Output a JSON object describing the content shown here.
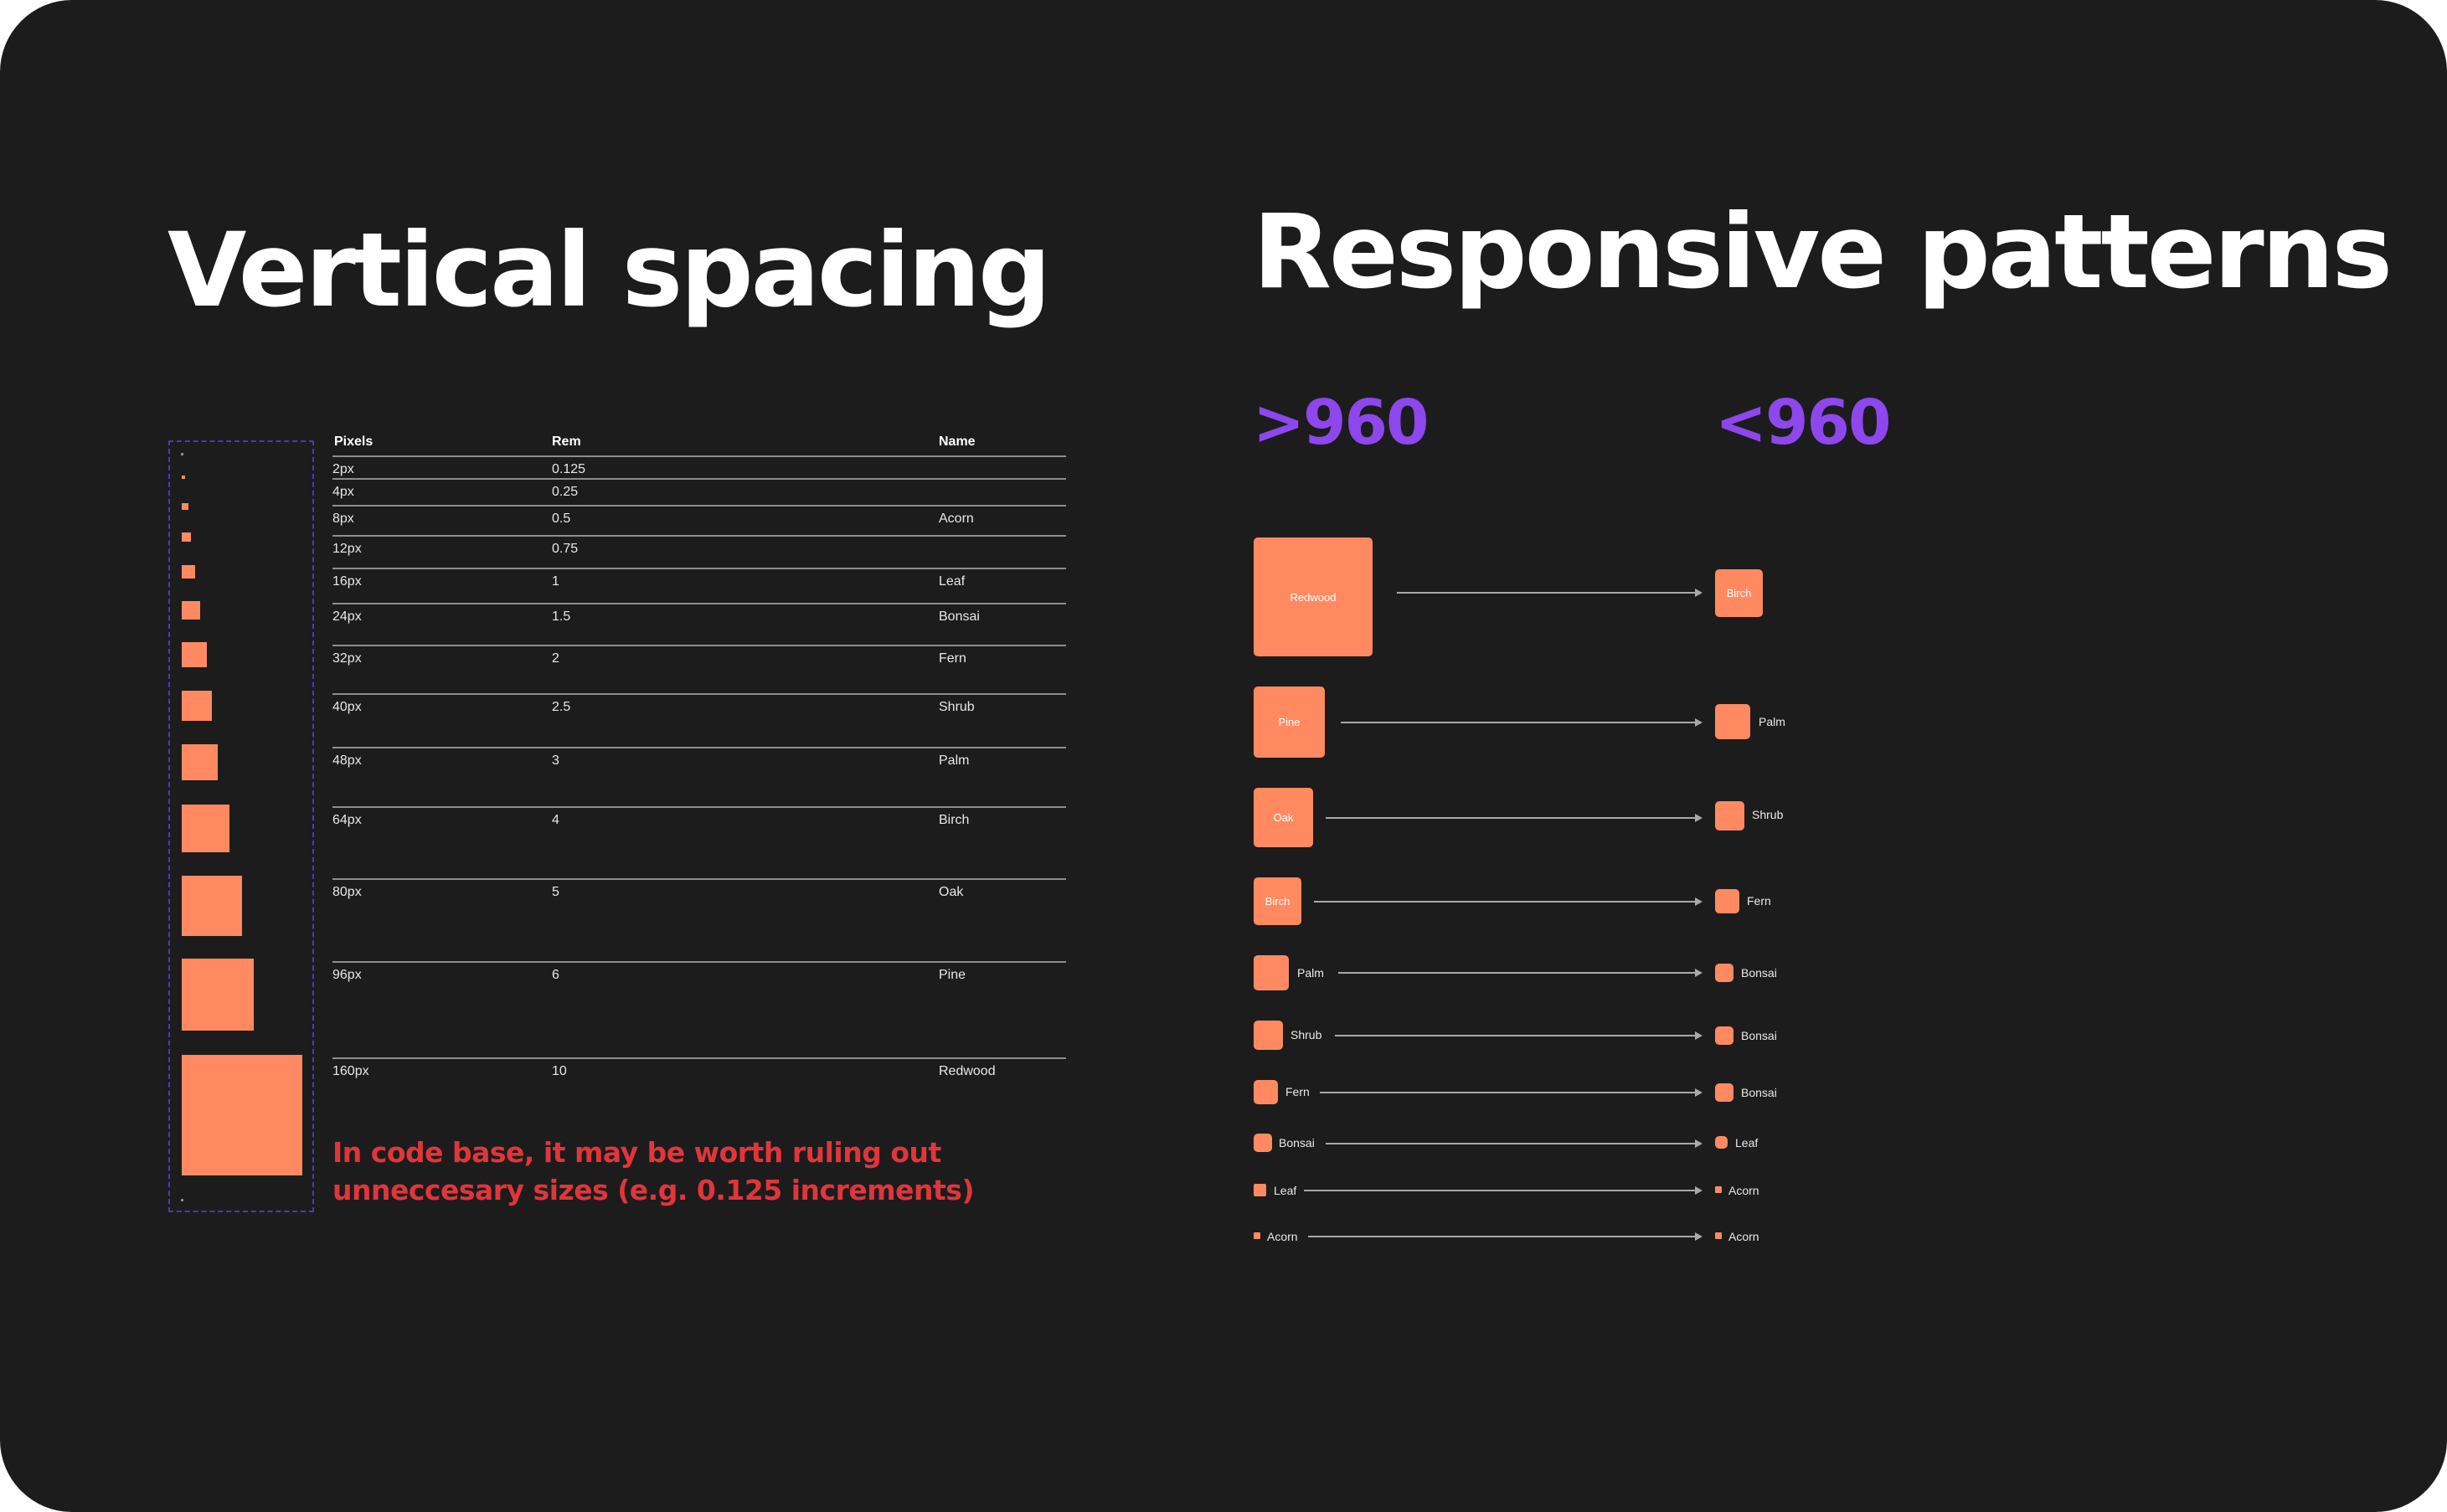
{
  "titles": {
    "vertical": "Vertical spacing",
    "responsive": "Responsive patterns"
  },
  "breakpoints": {
    "above": ">960",
    "below": "<960"
  },
  "table": {
    "headers": {
      "pixels": "Pixels",
      "rem": "Rem",
      "name": "Name"
    },
    "rows": [
      {
        "pixels": "2px",
        "rem": "0.125",
        "name": ""
      },
      {
        "pixels": "4px",
        "rem": "0.25",
        "name": ""
      },
      {
        "pixels": "8px",
        "rem": "0.5",
        "name": "Acorn"
      },
      {
        "pixels": "12px",
        "rem": "0.75",
        "name": ""
      },
      {
        "pixels": "16px",
        "rem": "1",
        "name": "Leaf"
      },
      {
        "pixels": "24px",
        "rem": "1.5",
        "name": "Bonsai"
      },
      {
        "pixels": "32px",
        "rem": "2",
        "name": "Fern"
      },
      {
        "pixels": "40px",
        "rem": "2.5",
        "name": "Shrub"
      },
      {
        "pixels": "48px",
        "rem": "3",
        "name": "Palm"
      },
      {
        "pixels": "64px",
        "rem": "4",
        "name": "Birch"
      },
      {
        "pixels": "80px",
        "rem": "5",
        "name": "Oak"
      },
      {
        "pixels": "96px",
        "rem": "6",
        "name": "Pine"
      },
      {
        "pixels": "160px",
        "rem": "10",
        "name": "Redwood"
      }
    ]
  },
  "note": "In code base, it may be worth ruling out unneccesary sizes (e.g. 0.125 increments)",
  "mappings": [
    {
      "from": "Redwood",
      "to": "Birch"
    },
    {
      "from": "Pine",
      "to": "Palm"
    },
    {
      "from": "Oak",
      "to": "Shrub"
    },
    {
      "from": "Birch",
      "to": "Fern"
    },
    {
      "from": "Palm",
      "to": "Bonsai"
    },
    {
      "from": "Shrub",
      "to": "Bonsai"
    },
    {
      "from": "Fern",
      "to": "Bonsai"
    },
    {
      "from": "Bonsai",
      "to": "Leaf"
    },
    {
      "from": "Leaf",
      "to": "Acorn"
    },
    {
      "from": "Acorn",
      "to": "Acorn"
    }
  ],
  "colors": {
    "accent": "#ff8a62",
    "breakpoint": "#8d47ec",
    "note": "#e0363a",
    "background": "#1c1c1d"
  }
}
